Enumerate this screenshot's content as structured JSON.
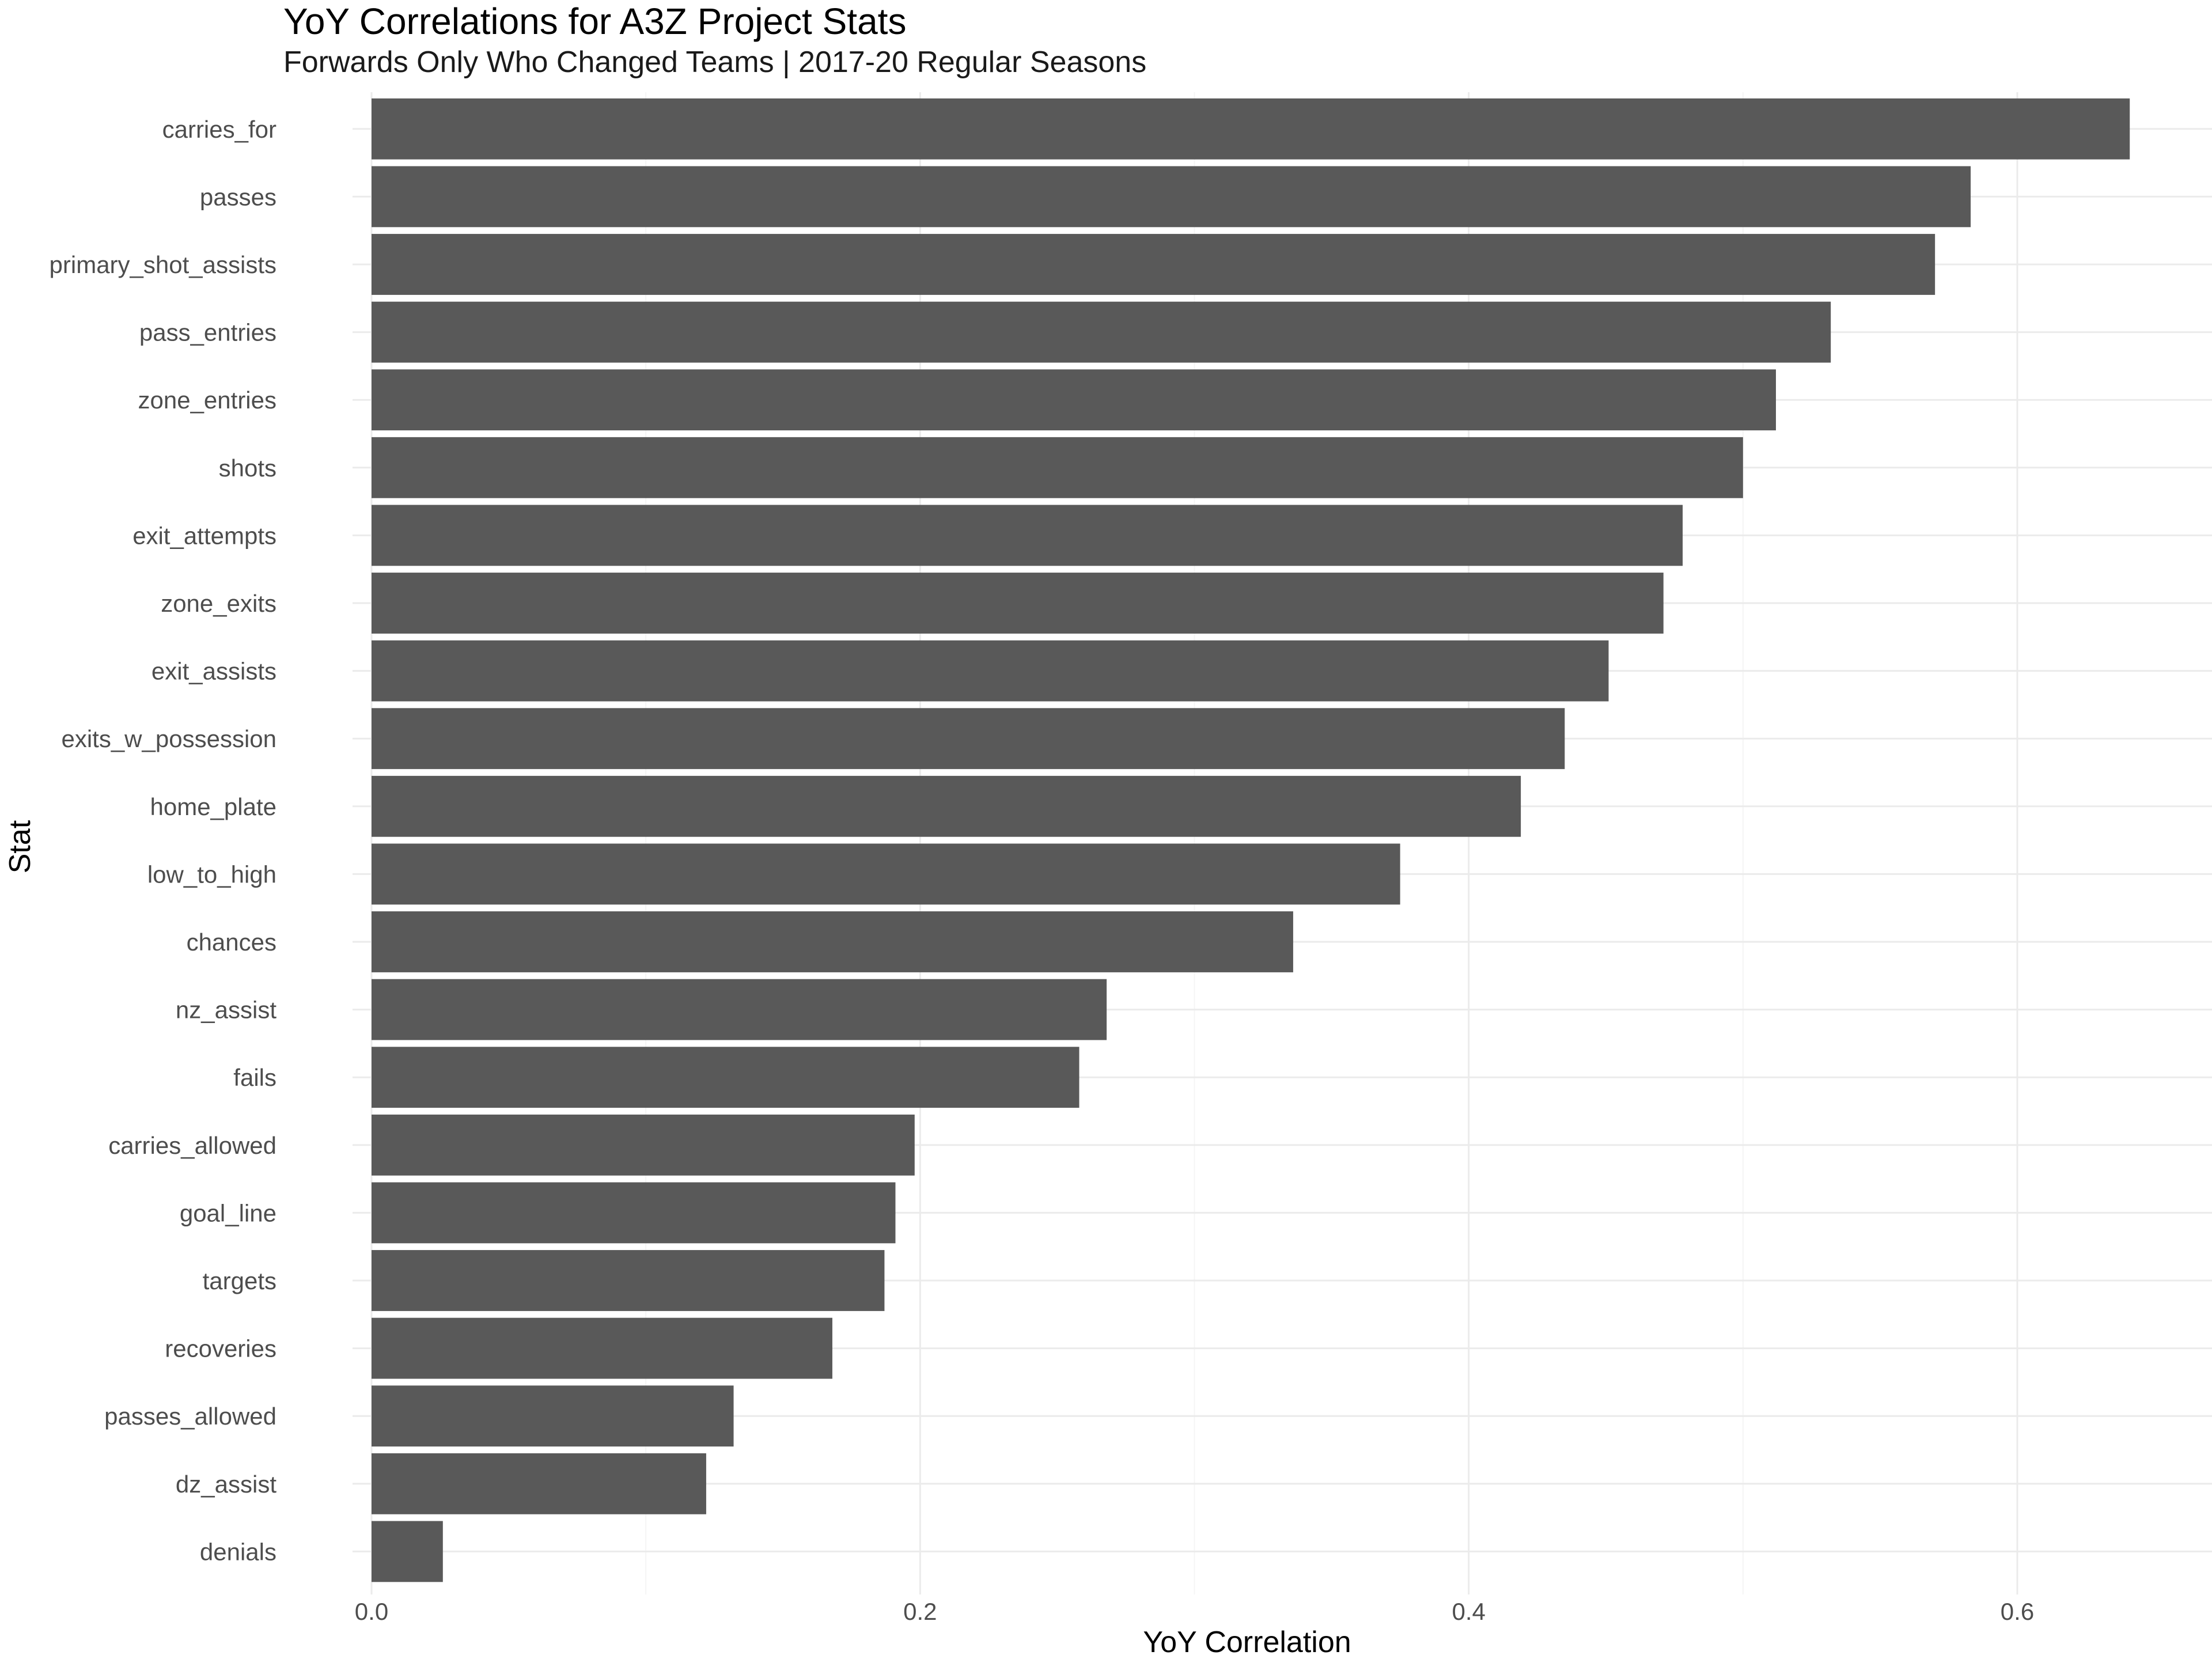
{
  "chart_data": {
    "type": "bar",
    "orientation": "horizontal",
    "title": "YoY Correlations for A3Z Project Stats",
    "subtitle": "Forwards Only Who Changed Teams | 2017-20 Regular Seasons",
    "xlabel": "YoY Correlation",
    "ylabel": "Stat",
    "xlim": [
      0,
      0.64
    ],
    "x_ticks": [
      "0.0",
      "0.2",
      "0.4",
      "0.6"
    ],
    "grid": true,
    "categories": [
      "carries_for",
      "passes",
      "primary_shot_assists",
      "pass_entries",
      "zone_entries",
      "shots",
      "exit_attempts",
      "zone_exits",
      "exit_assists",
      "exits_w_possession",
      "home_plate",
      "low_to_high",
      "chances",
      "nz_assist",
      "fails",
      "carries_allowed",
      "goal_line",
      "targets",
      "recoveries",
      "passes_allowed",
      "dz_assist",
      "denials"
    ],
    "values": [
      0.641,
      0.583,
      0.57,
      0.532,
      0.512,
      0.5,
      0.478,
      0.471,
      0.451,
      0.435,
      0.419,
      0.375,
      0.336,
      0.268,
      0.258,
      0.198,
      0.191,
      0.187,
      0.168,
      0.132,
      0.122,
      0.026
    ],
    "colors": {
      "bar": "#595959",
      "grid_major": "#ebebeb",
      "grid_minor": "#f5f5f5",
      "tick_label": "#4d4d4d",
      "axis_title": "#000000"
    }
  }
}
